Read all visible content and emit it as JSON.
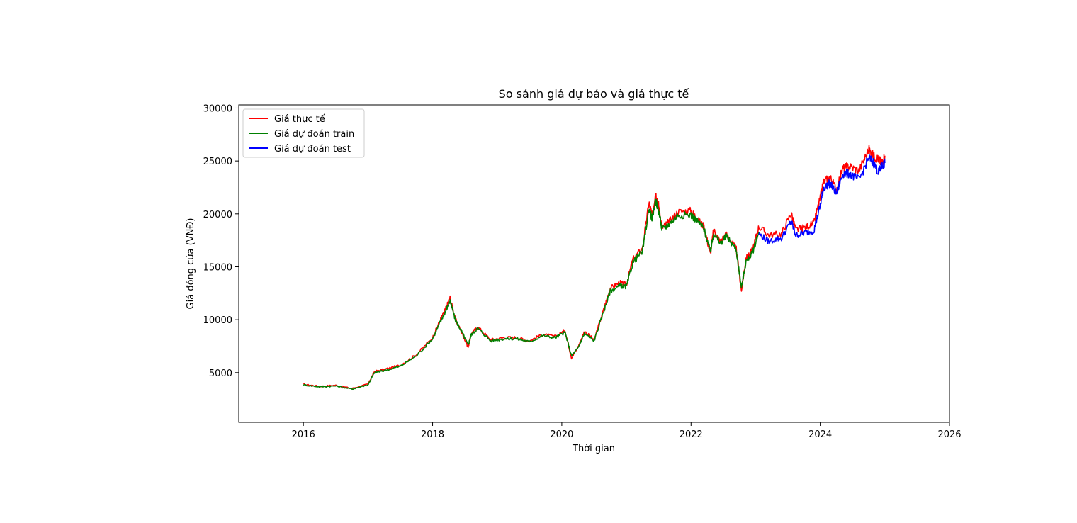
{
  "chart_data": {
    "type": "line",
    "title": "So sánh giá dự báo và giá thực tế",
    "xlabel": "Thời gian",
    "ylabel": "Giá đóng cửa (VNĐ)",
    "xlim": [
      2015.0,
      2026.0
    ],
    "ylim": [
      300,
      30300
    ],
    "x_ticks": [
      2016,
      2018,
      2020,
      2022,
      2024,
      2026
    ],
    "x_tick_labels": [
      "2016",
      "2018",
      "2020",
      "2022",
      "2024",
      "2026"
    ],
    "y_ticks": [
      5000,
      10000,
      15000,
      20000,
      25000,
      30000
    ],
    "y_tick_labels": [
      "5000",
      "10000",
      "15000",
      "20000",
      "25000",
      "30000"
    ],
    "grid": false,
    "legend_position": "upper-left",
    "series": [
      {
        "name": "Giá thực tế",
        "color": "#ff0000",
        "x": [
          2016.0,
          2016.25,
          2016.5,
          2016.75,
          2017.0,
          2017.1,
          2017.25,
          2017.5,
          2017.75,
          2018.0,
          2018.12,
          2018.2,
          2018.27,
          2018.35,
          2018.45,
          2018.55,
          2018.6,
          2018.7,
          2018.9,
          2019.1,
          2019.3,
          2019.5,
          2019.7,
          2019.9,
          2020.05,
          2020.15,
          2020.25,
          2020.35,
          2020.5,
          2020.65,
          2020.75,
          2020.9,
          2021.0,
          2021.1,
          2021.25,
          2021.35,
          2021.4,
          2021.45,
          2021.5,
          2021.55,
          2021.65,
          2021.8,
          2022.0,
          2022.1,
          2022.2,
          2022.3,
          2022.35,
          2022.45,
          2022.55,
          2022.7,
          2022.78,
          2022.85,
          2022.95,
          2023.05,
          2023.2,
          2023.4,
          2023.55,
          2023.62,
          2023.75,
          2023.9,
          2024.0,
          2024.05,
          2024.15,
          2024.25,
          2024.35,
          2024.45,
          2024.6,
          2024.75,
          2024.82,
          2024.9,
          2024.95,
          2025.0
        ],
        "y": [
          3900,
          3700,
          3800,
          3500,
          3900,
          5100,
          5300,
          5700,
          6700,
          8300,
          10000,
          11000,
          12100,
          10100,
          8800,
          7400,
          8700,
          9300,
          8100,
          8300,
          8300,
          8000,
          8600,
          8400,
          9000,
          6400,
          7400,
          8900,
          8100,
          11000,
          13000,
          13500,
          13300,
          15700,
          16800,
          21100,
          19800,
          22000,
          20800,
          18700,
          19200,
          20200,
          20300,
          19500,
          18800,
          16200,
          18500,
          17400,
          18100,
          16700,
          12700,
          15800,
          16600,
          18800,
          18000,
          18100,
          20100,
          18500,
          18700,
          19100,
          21500,
          23000,
          23500,
          22300,
          24300,
          24500,
          24100,
          26100,
          25500,
          25200,
          24800,
          25500
        ]
      },
      {
        "name": "Giá dự đoán train",
        "color": "#008000",
        "x": [
          2016.0,
          2016.25,
          2016.5,
          2016.75,
          2017.0,
          2017.1,
          2017.25,
          2017.5,
          2017.75,
          2018.0,
          2018.12,
          2018.2,
          2018.27,
          2018.35,
          2018.45,
          2018.55,
          2018.6,
          2018.7,
          2018.9,
          2019.1,
          2019.3,
          2019.5,
          2019.7,
          2019.9,
          2020.05,
          2020.15,
          2020.25,
          2020.35,
          2020.5,
          2020.65,
          2020.75,
          2020.9,
          2021.0,
          2021.1,
          2021.25,
          2021.35,
          2021.4,
          2021.45,
          2021.5,
          2021.55,
          2021.65,
          2021.8,
          2022.0,
          2022.1,
          2022.2,
          2022.3,
          2022.35,
          2022.45,
          2022.55,
          2022.7,
          2022.78,
          2022.85,
          2022.95,
          2023.05
        ],
        "y": [
          3850,
          3650,
          3750,
          3450,
          3850,
          5000,
          5200,
          5600,
          6600,
          8200,
          9800,
          10800,
          11800,
          10000,
          8900,
          7600,
          8600,
          9200,
          8000,
          8200,
          8200,
          7900,
          8500,
          8300,
          8800,
          6600,
          7300,
          8700,
          8000,
          10800,
          12700,
          13200,
          13100,
          15400,
          16500,
          20500,
          19500,
          21300,
          20300,
          18500,
          19000,
          19900,
          19900,
          19300,
          18600,
          16400,
          18200,
          17200,
          17900,
          16600,
          13000,
          15500,
          16300,
          18300
        ]
      },
      {
        "name": "Giá dự đoán test",
        "color": "#0000ff",
        "x": [
          2023.05,
          2023.2,
          2023.4,
          2023.55,
          2023.62,
          2023.75,
          2023.9,
          2024.0,
          2024.05,
          2024.15,
          2024.25,
          2024.35,
          2024.45,
          2024.6,
          2024.75,
          2024.82,
          2024.9,
          2024.95,
          2025.0
        ],
        "y": [
          18100,
          17400,
          17700,
          19300,
          18000,
          18200,
          18400,
          20800,
          22400,
          22900,
          21900,
          23800,
          23800,
          23200,
          25300,
          24900,
          23900,
          24500,
          24800
        ]
      }
    ]
  }
}
